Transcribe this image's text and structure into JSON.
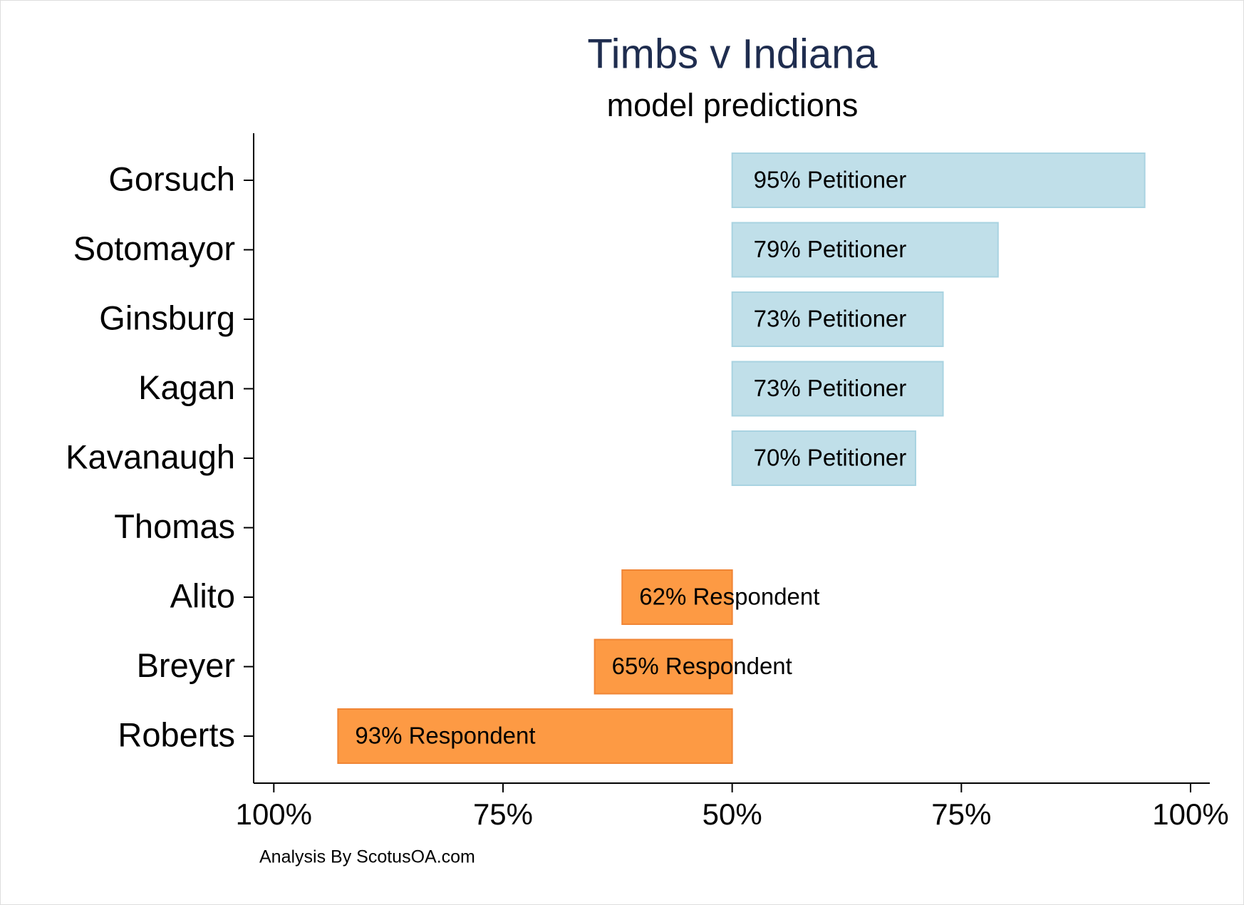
{
  "chart_data": {
    "type": "diverging-bar",
    "title": "Timbs v Indiana",
    "subtitle": "model predictions",
    "footer": "Analysis By ScotusOA.com",
    "categories": [
      "Gorsuch",
      "Sotomayor",
      "Ginsburg",
      "Kagan",
      "Kavanaugh",
      "Thomas",
      "Alito",
      "Breyer",
      "Roberts"
    ],
    "series": [
      {
        "side": "right",
        "color": "#c0dfe9",
        "stroke": "#a9d3e1",
        "values": [
          95,
          79,
          73,
          73,
          70,
          null,
          null,
          null,
          null
        ],
        "value_labels": [
          "95% Petitioner",
          "79% Petitioner",
          "73% Petitioner",
          "73% Petitioner",
          "70% Petitioner",
          null,
          null,
          null,
          null
        ]
      },
      {
        "side": "left",
        "color": "#fd9a44",
        "stroke": "#f08535",
        "values": [
          null,
          null,
          null,
          null,
          null,
          null,
          62,
          65,
          93
        ],
        "value_labels": [
          null,
          null,
          null,
          null,
          null,
          null,
          "62% Respondent",
          "65% Respondent",
          "93% Respondent"
        ]
      }
    ],
    "center": 50,
    "xlim": [
      102.2,
      102.1
    ],
    "xticks": [
      {
        "value": 100,
        "label": "100%"
      },
      {
        "value": 75,
        "label": "75%"
      },
      {
        "value": 50,
        "label": "50%"
      },
      {
        "value": 75,
        "label": "75%"
      },
      {
        "value": 100,
        "label": "100%"
      }
    ]
  }
}
